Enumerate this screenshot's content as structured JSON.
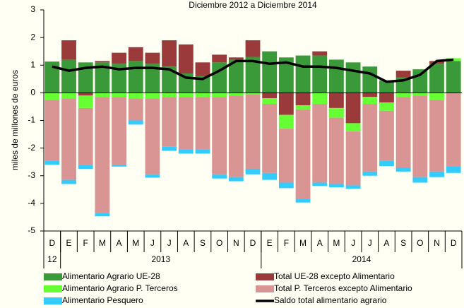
{
  "chart_data": {
    "type": "bar",
    "title": "Diciembre 2012 a Diciembre 2014",
    "y_label": "miles de millones de euros",
    "categories": [
      "D",
      "E",
      "F",
      "M",
      "A",
      "M",
      "J",
      "J",
      "A",
      "S",
      "O",
      "N",
      "D",
      "E",
      "F",
      "M",
      "A",
      "M",
      "J",
      "J",
      "A",
      "S",
      "O",
      "N",
      "D"
    ],
    "year_groups": [
      {
        "label": "12",
        "months": 1
      },
      {
        "label": "2013",
        "months": 12
      },
      {
        "label": "2014",
        "months": 12
      }
    ],
    "ylim": [
      -5,
      3
    ],
    "yticks": [
      -5,
      -4,
      -3,
      -2,
      -1,
      0,
      1,
      2,
      3
    ],
    "stacked": true,
    "series": [
      {
        "name": "Alimentario Agrario UE-28",
        "color": "#3a9a3a",
        "values": [
          1.13,
          1.2,
          1.1,
          1.1,
          1.05,
          1.15,
          1.05,
          0.95,
          0.7,
          0.6,
          1.1,
          1.2,
          1.3,
          1.5,
          1.28,
          1.35,
          1.35,
          1.2,
          1.1,
          0.95,
          0.45,
          0.55,
          0.85,
          1.05,
          1.15
        ]
      },
      {
        "name": "Total UE-28  excepto Alimentario",
        "color": "#9b3a3a",
        "values": [
          0,
          0.7,
          -0.1,
          0.05,
          0.4,
          0.5,
          0.4,
          0.95,
          1.05,
          0.5,
          0.28,
          0.08,
          0.6,
          -0.2,
          -0.8,
          -0.45,
          0.15,
          -0.55,
          -1.1,
          -0.15,
          -0.35,
          0.25,
          0,
          0.1,
          0
        ]
      },
      {
        "name": "Alimentario Agrario P. Terceros",
        "color": "#66ff33",
        "values": [
          -0.25,
          -0.2,
          -0.45,
          -0.15,
          -0.15,
          -0.2,
          -0.2,
          -0.15,
          -0.15,
          -0.15,
          -0.15,
          -0.1,
          -0.05,
          -0.2,
          -0.5,
          -0.15,
          -0.4,
          -0.35,
          -0.3,
          -0.25,
          -0.3,
          -0.15,
          -0.1,
          -0.25,
          0.1
        ]
      },
      {
        "name": "Total P. Terceros excepto Alimentario",
        "color": "#d99594",
        "values": [
          -2.2,
          -2.95,
          -2.05,
          -4.2,
          -2.45,
          -0.8,
          -2.75,
          -1.8,
          -1.9,
          -1.9,
          -2.8,
          -2.95,
          -2.7,
          -2.5,
          -1.95,
          -3.25,
          -2.85,
          -2.4,
          -1.95,
          -2.45,
          -1.8,
          -2.55,
          -2.95,
          -2.6,
          -2.65
        ]
      },
      {
        "name": "Alimentario Pesquero",
        "color": "#33ccff",
        "values": [
          -0.15,
          -0.15,
          -0.15,
          -0.12,
          -0.07,
          -0.15,
          -0.12,
          -0.15,
          -0.15,
          -0.15,
          -0.15,
          -0.15,
          -0.2,
          -0.25,
          -0.2,
          -0.12,
          -0.12,
          -0.12,
          -0.12,
          -0.15,
          -0.2,
          -0.15,
          -0.2,
          -0.2,
          -0.25
        ]
      },
      {
        "name": "Saldo total alimentario  agrario",
        "color": "#000000",
        "type": "line",
        "values": [
          0.95,
          0.8,
          0.9,
          0.95,
          0.85,
          0.9,
          0.9,
          0.85,
          0.55,
          0.5,
          0.8,
          1.15,
          1.15,
          1.05,
          1.1,
          0.95,
          0.95,
          0.9,
          0.8,
          0.7,
          0.4,
          0.45,
          0.65,
          1.15,
          1.2
        ]
      }
    ]
  }
}
